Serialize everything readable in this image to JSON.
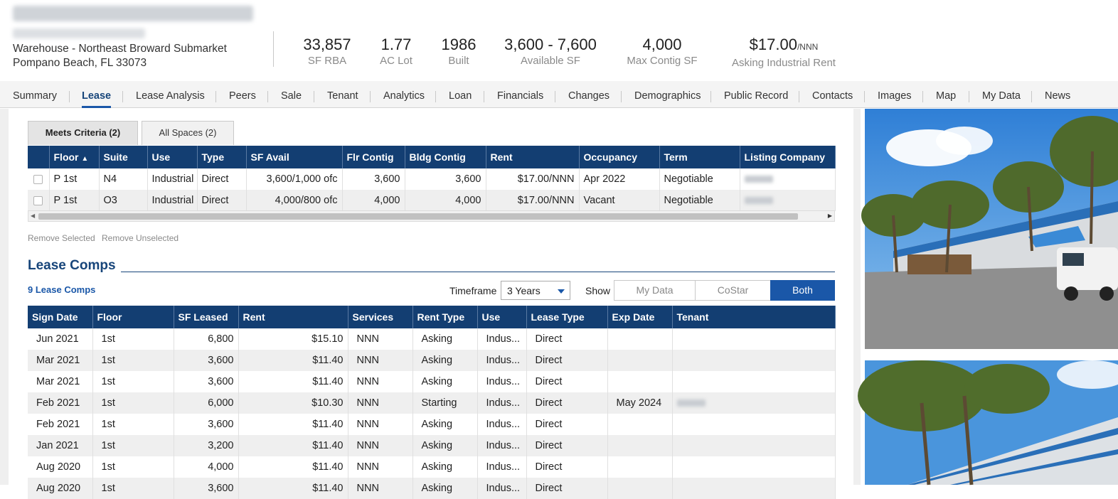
{
  "header": {
    "address_line1": "Warehouse - Northeast Broward Submarket",
    "address_line2": "Pompano Beach, FL 33073",
    "stats": [
      {
        "value": "33,857",
        "label": "SF RBA"
      },
      {
        "value": "1.77",
        "label": "AC Lot"
      },
      {
        "value": "1986",
        "label": "Built"
      },
      {
        "value": "3,600 - 7,600",
        "label": "Available SF"
      },
      {
        "value": "4,000",
        "label": "Max Contig SF"
      },
      {
        "value": "$17.00",
        "unit": "/NNN",
        "label": "Asking Industrial Rent"
      }
    ]
  },
  "nav": {
    "tabs": [
      "Summary",
      "Lease",
      "Lease Analysis",
      "Peers",
      "Sale",
      "Tenant",
      "Analytics",
      "Loan",
      "Financials",
      "Changes",
      "Demographics",
      "Public Record",
      "Contacts",
      "Images",
      "Map",
      "My Data",
      "News"
    ],
    "active": "Lease"
  },
  "spaces": {
    "tabs": [
      "Meets Criteria (2)",
      "All Spaces (2)"
    ],
    "columns": [
      "Floor",
      "Suite",
      "Use",
      "Type",
      "SF Avail",
      "Flr Contig",
      "Bldg Contig",
      "Rent",
      "Occupancy",
      "Term",
      "Listing Company"
    ],
    "sort_arrow": "▲",
    "rows": [
      [
        "P 1st",
        "N4",
        "Industrial",
        "Direct",
        "3,600/1,000 ofc",
        "3,600",
        "3,600",
        "$17.00/NNN",
        "Apr 2022",
        "Negotiable"
      ],
      [
        "P 1st",
        "O3",
        "Industrial",
        "Direct",
        "4,000/800 ofc",
        "4,000",
        "4,000",
        "$17.00/NNN",
        "Vacant",
        "Negotiable"
      ]
    ],
    "remove_selected": "Remove Selected",
    "remove_unselected": "Remove Unselected"
  },
  "comps": {
    "title": "Lease Comps",
    "count_label": "9 Lease Comps",
    "timeframe_label": "Timeframe",
    "timeframe_value": "3 Years",
    "show_label": "Show",
    "show_options": [
      "My Data",
      "CoStar",
      "Both"
    ],
    "show_selected": "Both",
    "columns": [
      "Sign Date",
      "Floor",
      "SF Leased",
      "Rent",
      "Services",
      "Rent Type",
      "Use",
      "Lease Type",
      "Exp Date",
      "Tenant"
    ],
    "rows": [
      [
        "Jun 2021",
        "1st",
        "6,800",
        "$15.10",
        "NNN",
        "Asking",
        "Indus...",
        "Direct",
        "",
        ""
      ],
      [
        "Mar 2021",
        "1st",
        "3,600",
        "$11.40",
        "NNN",
        "Asking",
        "Indus...",
        "Direct",
        "",
        ""
      ],
      [
        "Mar 2021",
        "1st",
        "3,600",
        "$11.40",
        "NNN",
        "Asking",
        "Indus...",
        "Direct",
        "",
        ""
      ],
      [
        "Feb 2021",
        "1st",
        "6,000",
        "$10.30",
        "NNN",
        "Starting",
        "Indus...",
        "Direct",
        "May 2024",
        ""
      ],
      [
        "Feb 2021",
        "1st",
        "3,600",
        "$11.40",
        "NNN",
        "Asking",
        "Indus...",
        "Direct",
        "",
        ""
      ],
      [
        "Jan 2021",
        "1st",
        "3,200",
        "$11.40",
        "NNN",
        "Asking",
        "Indus...",
        "Direct",
        "",
        ""
      ],
      [
        "Aug 2020",
        "1st",
        "4,000",
        "$11.40",
        "NNN",
        "Asking",
        "Indus...",
        "Direct",
        "",
        ""
      ],
      [
        "Aug 2020",
        "1st",
        "3,600",
        "$11.40",
        "NNN",
        "Asking",
        "Indus...",
        "Direct",
        "",
        ""
      ]
    ]
  },
  "colors": {
    "header_blue": "#133e72",
    "accent_blue": "#1a57a8"
  }
}
